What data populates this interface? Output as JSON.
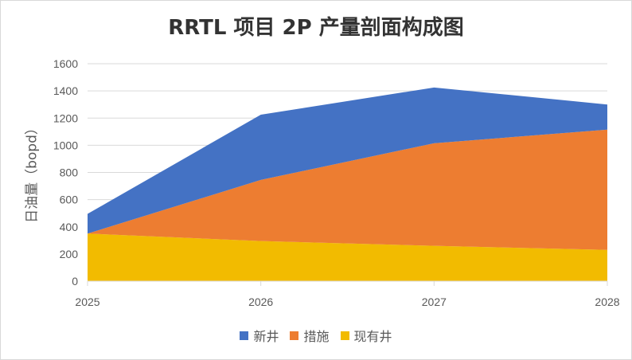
{
  "chart_data": {
    "type": "area",
    "stacked": true,
    "title": "RRTL 项目 2P 产量剖面构成图",
    "ylabel": "日油量（bopd）",
    "xlabel": "",
    "x": [
      "2025",
      "2026",
      "2027",
      "2028"
    ],
    "ylim": [
      0,
      1600
    ],
    "yticks": [
      0,
      200,
      400,
      600,
      800,
      1000,
      1200,
      1400,
      1600
    ],
    "grid": true,
    "legend_position": "bottom",
    "series": [
      {
        "name": "现有井",
        "color": "#f2bb00",
        "values": [
          350,
          295,
          260,
          230
        ]
      },
      {
        "name": "措施",
        "color": "#ed7d31",
        "values": [
          0,
          450,
          755,
          885
        ]
      },
      {
        "name": "新井",
        "color": "#4472c4",
        "values": [
          145,
          480,
          410,
          185
        ]
      }
    ]
  },
  "legend": [
    {
      "label": "新井",
      "color": "#4472c4"
    },
    {
      "label": "措施",
      "color": "#ed7d31"
    },
    {
      "label": "现有井",
      "color": "#f2bb00"
    }
  ]
}
